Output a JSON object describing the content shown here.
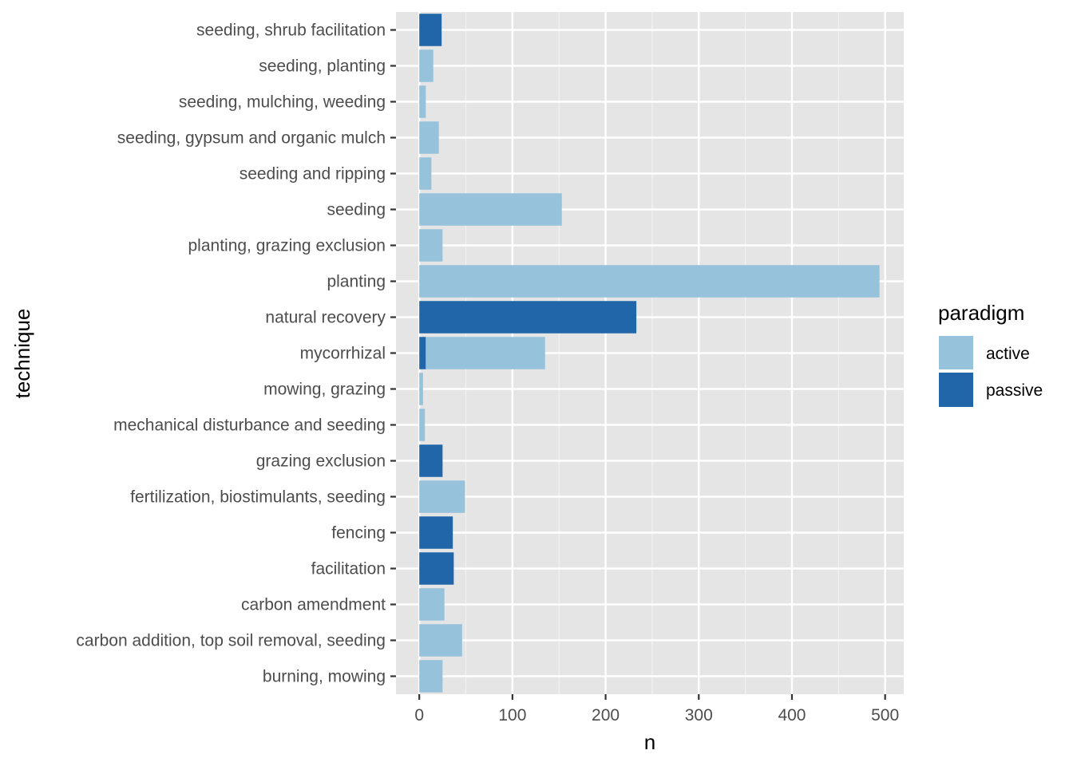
{
  "chart_data": {
    "type": "bar",
    "orientation": "horizontal",
    "stacked": true,
    "xlabel": "n",
    "ylabel": "technique",
    "xlim": [
      -25,
      520
    ],
    "xticks": [
      0,
      100,
      200,
      300,
      400,
      500
    ],
    "grid": true,
    "legend": {
      "title": "paradigm",
      "placement": "right",
      "entries": [
        {
          "key": "active",
          "label": "active",
          "color": "#96c2dc"
        },
        {
          "key": "passive",
          "label": "passive",
          "color": "#2066a8"
        }
      ]
    },
    "categories": [
      "burning, mowing",
      "carbon addition, top soil removal, seeding",
      "carbon amendment",
      "facilitation",
      "fencing",
      "fertilization, biostimulants, seeding",
      "grazing exclusion",
      "mechanical disturbance and seeding",
      "mowing, grazing",
      "mycorrhizal",
      "natural recovery",
      "planting",
      "planting, grazing exclusion",
      "seeding",
      "seeding and ripping",
      "seeding, gypsum and organic mulch",
      "seeding, mulching, weeding",
      "seeding, planting",
      "seeding, shrub facilitation"
    ],
    "series": [
      {
        "name": "active",
        "values": [
          25,
          46,
          27,
          0,
          0,
          49,
          0,
          6,
          4,
          128,
          0,
          494,
          25,
          153,
          13,
          21,
          7,
          15,
          0
        ]
      },
      {
        "name": "passive",
        "values": [
          0,
          0,
          0,
          37,
          36,
          0,
          25,
          0,
          0,
          7,
          233,
          0,
          0,
          0,
          0,
          0,
          0,
          0,
          24
        ]
      }
    ]
  },
  "colors": {
    "panel_background": "#e5e5e5",
    "grid_major": "#ffffff",
    "grid_minor": "#f2f2f2",
    "tick_mark": "#333333"
  }
}
